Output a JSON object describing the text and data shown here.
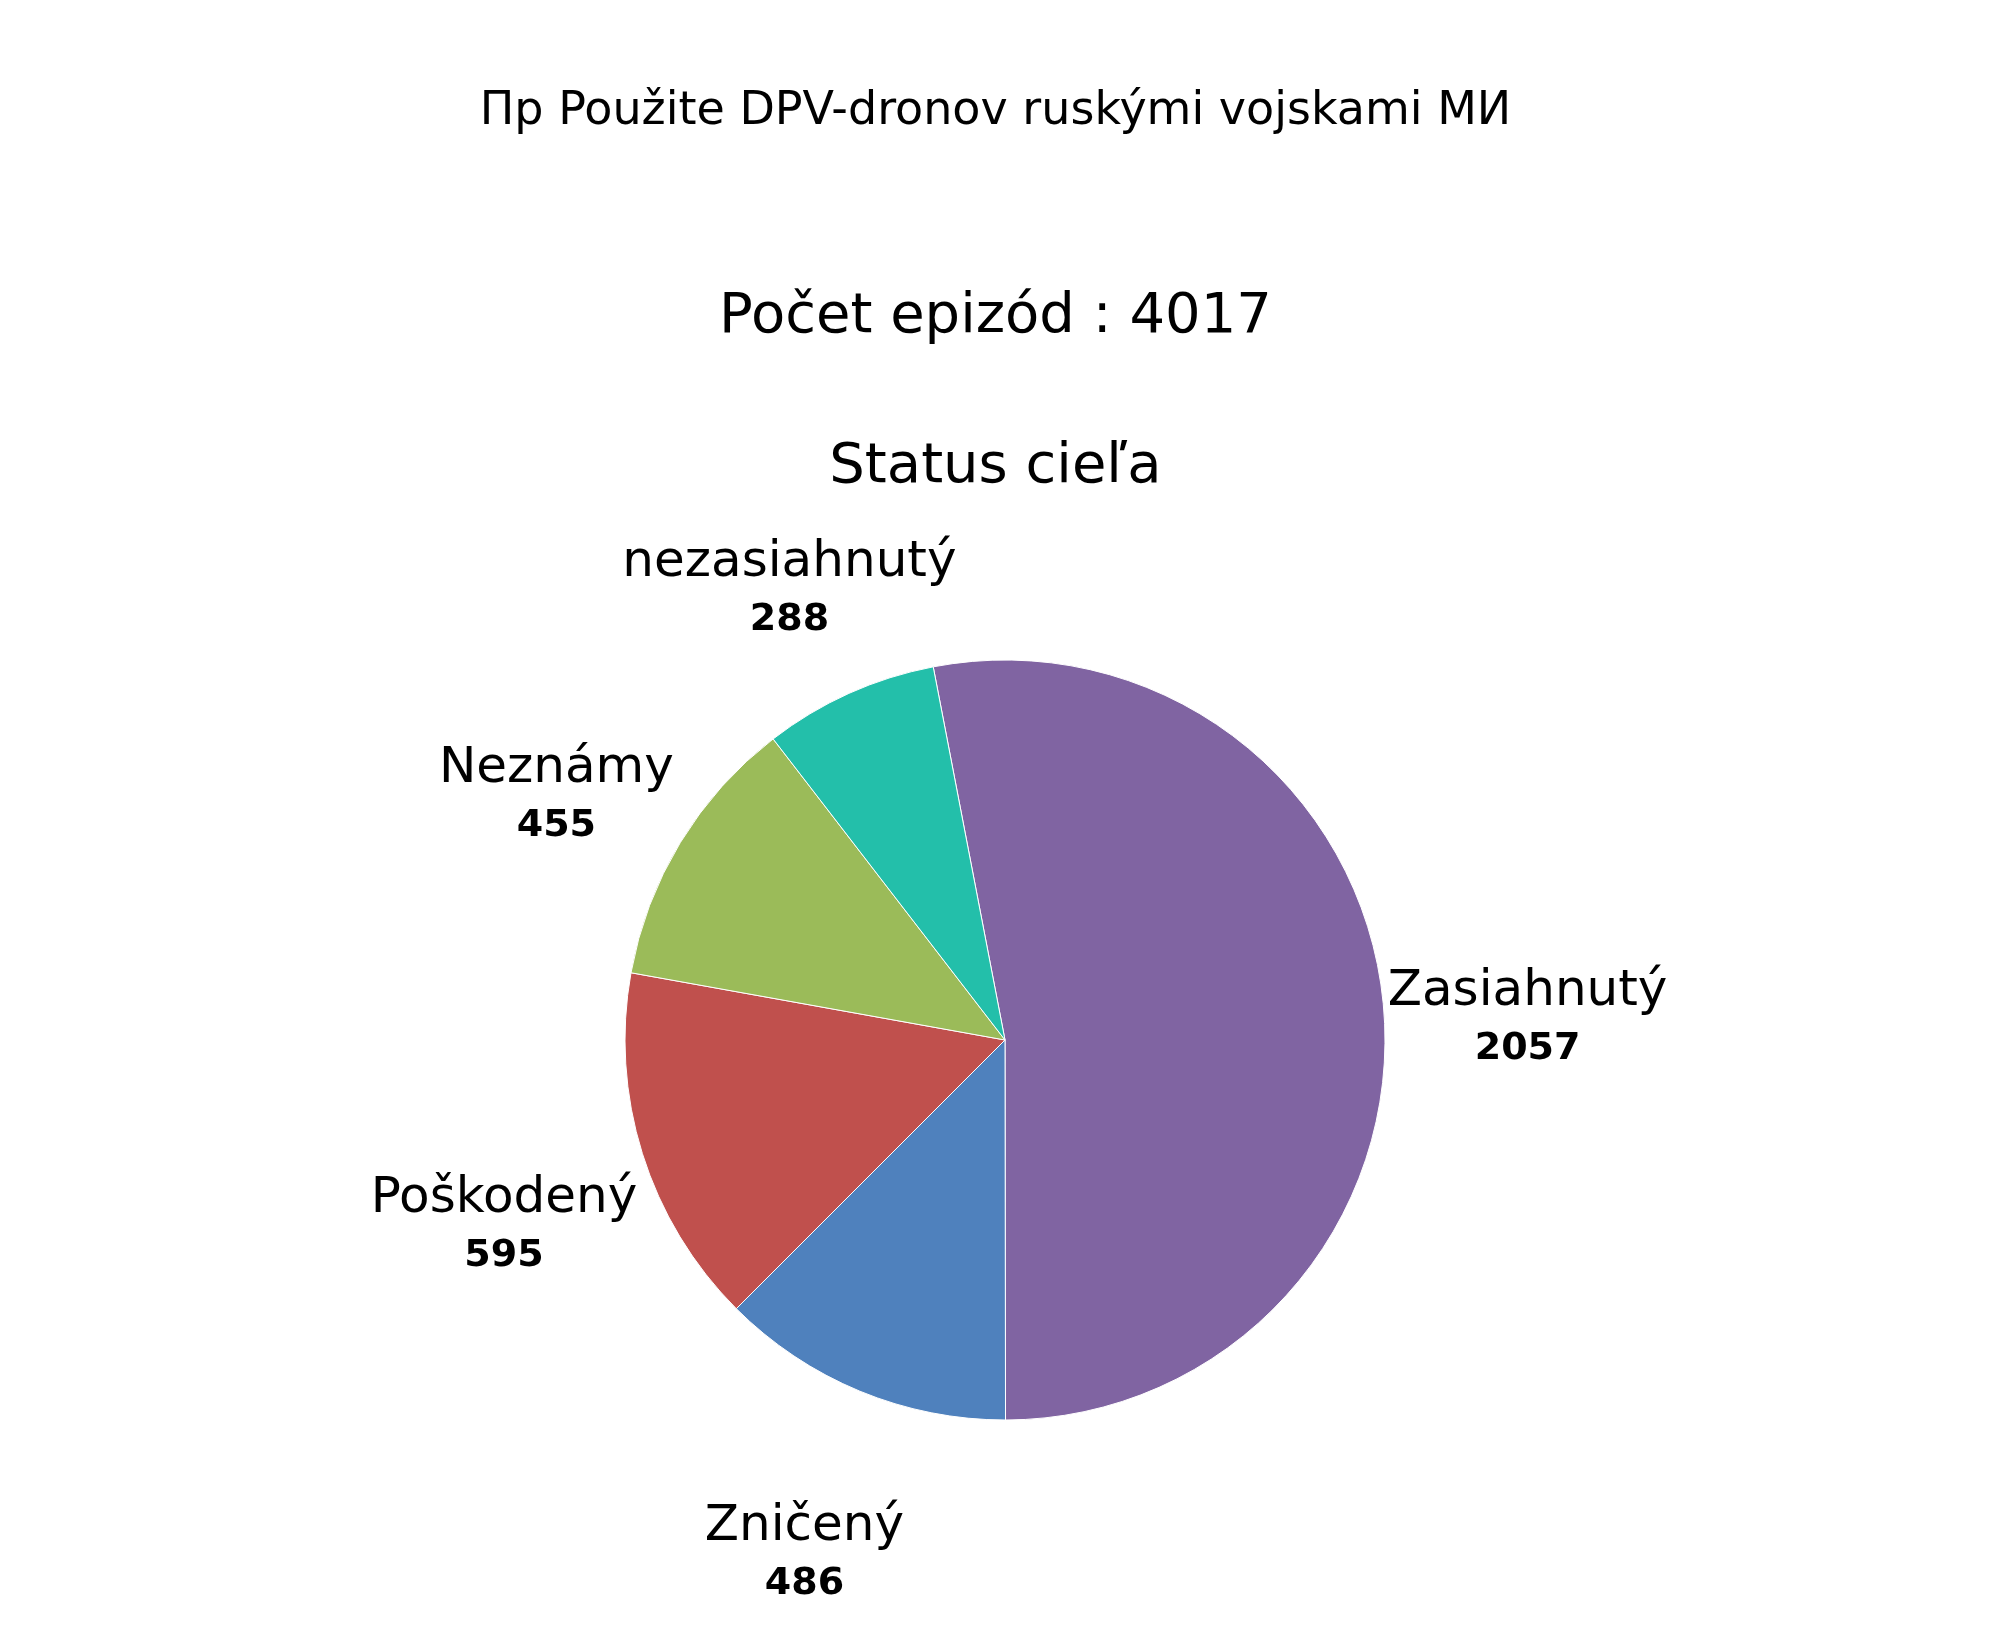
{
  "chart_data": {
    "type": "pie",
    "title": "Пр Použite DPV-dronov ruskými vojskami МИ",
    "subtitle": "Počet epizód : 4017",
    "annotations": [
      "Status cieľa"
    ],
    "categories": [
      "Zasiahnutý",
      "Zničený",
      "Poškodený",
      "Neznámy",
      "nezasiahnutý"
    ],
    "values": [
      2057,
      486,
      595,
      455,
      288
    ],
    "colors": [
      "#8064a2",
      "#4f81bd",
      "#c0504d",
      "#9bbb59",
      "#23bfaa"
    ],
    "data_labels": true
  }
}
